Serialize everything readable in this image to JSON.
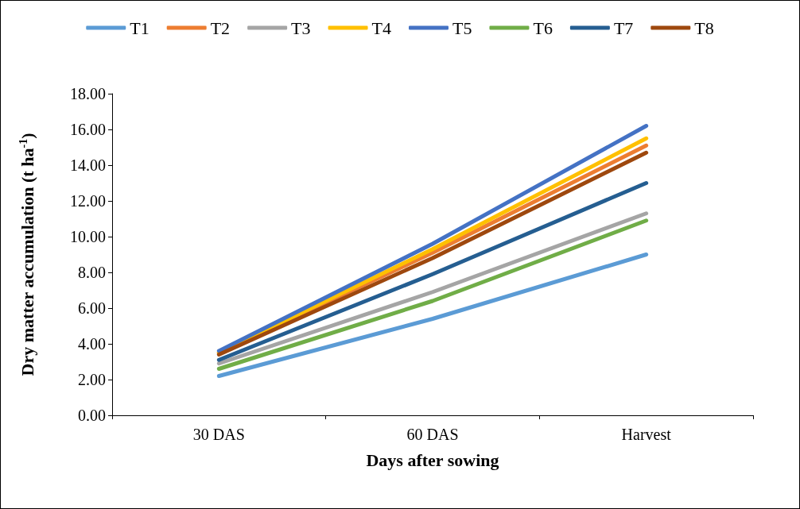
{
  "chart_data": {
    "type": "line",
    "xlabel": "Days after sowing",
    "ylabel": "Dry matter accumulation (t ha$^{-1}$)",
    "categories": [
      "30 DAS",
      "60 DAS",
      "Harvest"
    ],
    "ylim": [
      0,
      18
    ],
    "yticks": [
      {
        "value": 0,
        "label": "0.00"
      },
      {
        "value": 2,
        "label": "2.00"
      },
      {
        "value": 4,
        "label": "4.00"
      },
      {
        "value": 6,
        "label": "6.00"
      },
      {
        "value": 8,
        "label": "8.00"
      },
      {
        "value": 10,
        "label": "10.00"
      },
      {
        "value": 12,
        "label": "12.00"
      },
      {
        "value": 14,
        "label": "14.00"
      },
      {
        "value": 16,
        "label": "16.00"
      },
      {
        "value": 18,
        "label": "18.00"
      }
    ],
    "grid": false,
    "legend": "top",
    "marker": "none",
    "line_style": "solid",
    "series": [
      {
        "name": "T1",
        "color": "#5b9bd5",
        "values": [
          2.2,
          5.4,
          9.0
        ]
      },
      {
        "name": "T2",
        "color": "#ed7d31",
        "values": [
          3.5,
          9.1,
          15.1
        ]
      },
      {
        "name": "T3",
        "color": "#a5a5a5",
        "values": [
          2.9,
          6.9,
          11.3
        ]
      },
      {
        "name": "T4",
        "color": "#ffc000",
        "values": [
          3.5,
          9.3,
          15.5
        ]
      },
      {
        "name": "T5",
        "color": "#4472c4",
        "values": [
          3.6,
          9.6,
          16.2
        ]
      },
      {
        "name": "T6",
        "color": "#70ad47",
        "values": [
          2.6,
          6.4,
          10.9
        ]
      },
      {
        "name": "T7",
        "color": "#255e91",
        "values": [
          3.1,
          7.9,
          13.0
        ]
      },
      {
        "name": "T8",
        "color": "#9e480e",
        "values": [
          3.4,
          8.8,
          14.7
        ]
      }
    ]
  }
}
